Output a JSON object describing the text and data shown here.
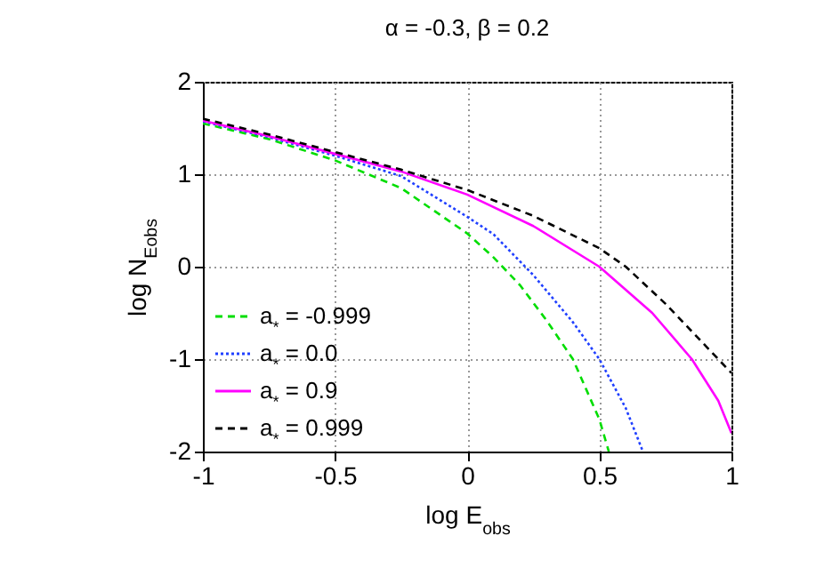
{
  "chart_data": {
    "type": "line",
    "title": "α = -0.3, β = 0.2",
    "xlabel": "log E$_{obs}$",
    "ylabel": "log N$_{Eobs}$",
    "xlim": [
      -1,
      1
    ],
    "ylim": [
      -2,
      2
    ],
    "xticks": [
      -1,
      -0.5,
      0,
      0.5,
      1
    ],
    "yticks": [
      -2,
      -1,
      0,
      1,
      2
    ],
    "grid": true,
    "legend": "bottom left",
    "series": [
      {
        "name": "a$_{*}$ = -0.999",
        "color": "#00dd00",
        "line_style": "dashed",
        "x": [
          -1,
          -0.75,
          -0.5,
          -0.25,
          0,
          0.1,
          0.2,
          0.3,
          0.4,
          0.5,
          0.536
        ],
        "values": [
          1.55,
          1.38,
          1.15,
          0.85,
          0.36,
          0.1,
          -0.2,
          -0.58,
          -1.0,
          -1.65,
          -2
        ]
      },
      {
        "name": "a$_{*}$ = 0.0",
        "color": "#2040ff",
        "line_style": "dotted",
        "x": [
          -1,
          -0.75,
          -0.5,
          -0.25,
          0,
          0.1,
          0.25,
          0.4,
          0.5,
          0.6,
          0.665
        ],
        "values": [
          1.57,
          1.4,
          1.2,
          0.98,
          0.54,
          0.35,
          -0.09,
          -0.6,
          -1.0,
          -1.53,
          -2
        ]
      },
      {
        "name": "a$_{*}$ = 0.9",
        "color": "#ff00ff",
        "line_style": "solid",
        "x": [
          -1,
          -0.75,
          -0.5,
          -0.25,
          0,
          0.25,
          0.5,
          0.7,
          0.85,
          0.95,
          1
        ],
        "values": [
          1.58,
          1.41,
          1.22,
          1.03,
          0.78,
          0.44,
          0.0,
          -0.5,
          -1.0,
          -1.45,
          -1.8
        ]
      },
      {
        "name": "a$_{*}$ = 0.999",
        "color": "#000000",
        "line_style": "dashed",
        "x": [
          -1,
          -0.75,
          -0.5,
          -0.25,
          0,
          0.25,
          0.5,
          0.6,
          0.75,
          0.9,
          1
        ],
        "values": [
          1.6,
          1.43,
          1.24,
          1.05,
          0.83,
          0.55,
          0.2,
          0.0,
          -0.4,
          -0.85,
          -1.15
        ]
      }
    ]
  }
}
